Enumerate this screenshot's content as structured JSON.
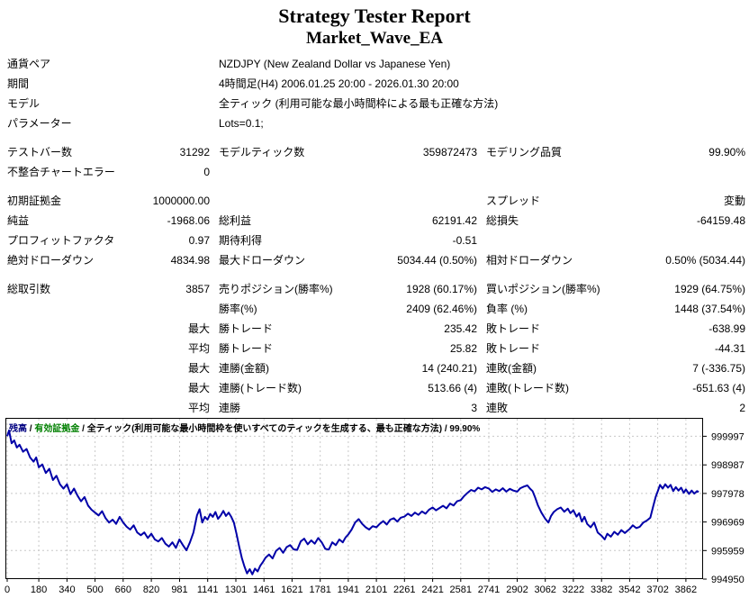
{
  "header": {
    "title": "Strategy Tester Report",
    "subtitle": "Market_Wave_EA"
  },
  "report": {
    "rows": [
      {
        "cells": [
          "通貨ペア",
          "",
          "NZDJPY (New Zealand Dollar vs Japanese Yen)",
          "",
          "",
          ""
        ]
      },
      {
        "cells": [
          "期間",
          "",
          "4時間足(H4) 2006.01.25 20:00 - 2026.01.30 20:00",
          "",
          "",
          ""
        ]
      },
      {
        "cells": [
          "モデル",
          "",
          "全ティック (利用可能な最小時間枠による最も正確な方法)",
          "",
          "",
          ""
        ]
      },
      {
        "cells": [
          "パラメーター",
          "",
          "Lots=0.1;",
          "",
          "",
          ""
        ]
      },
      {
        "gap_before": true,
        "cells": [
          "テストバー数",
          "31292",
          "モデルティック数",
          "359872473",
          "モデリング品質",
          "99.90%"
        ]
      },
      {
        "cells": [
          "不整合チャートエラー",
          "0",
          "",
          "",
          "",
          ""
        ]
      },
      {
        "gap_before": true,
        "cells": [
          "初期証拠金",
          "1000000.00",
          "",
          "",
          "スプレッド",
          "変動"
        ]
      },
      {
        "cells": [
          "純益",
          "-1968.06",
          "総利益",
          "62191.42",
          "総損失",
          "-64159.48"
        ]
      },
      {
        "cells": [
          "プロフィットファクタ",
          "0.97",
          "期待利得",
          "-0.51",
          "",
          ""
        ]
      },
      {
        "cells": [
          "絶対ドローダウン",
          "4834.98",
          "最大ドローダウン",
          "5034.44 (0.50%)",
          "相対ドローダウン",
          "0.50% (5034.44)"
        ]
      },
      {
        "gap_before": true,
        "cells": [
          "総取引数",
          "3857",
          "売りポジション(勝率%)",
          "1928 (60.17%)",
          "買いポジション(勝率%)",
          "1929 (64.75%)"
        ]
      },
      {
        "cells": [
          "",
          "",
          "勝率(%)",
          "2409 (62.46%)",
          "負率 (%)",
          "1448 (37.54%)"
        ]
      },
      {
        "cells": [
          "",
          "最大",
          "勝トレード",
          "235.42",
          "敗トレード",
          "-638.99"
        ]
      },
      {
        "cells": [
          "",
          "平均",
          "勝トレード",
          "25.82",
          "敗トレード",
          "-44.31"
        ]
      },
      {
        "cells": [
          "",
          "最大",
          "連勝(金額)",
          "14 (240.21)",
          "連敗(金額)",
          "7 (-336.75)"
        ]
      },
      {
        "cells": [
          "",
          "最大",
          "連勝(トレード数)",
          "513.66 (4)",
          "連敗(トレード数)",
          "-651.63 (4)"
        ]
      },
      {
        "cells": [
          "",
          "平均",
          "連勝",
          "3",
          "連敗",
          "2"
        ]
      }
    ]
  },
  "chart_data": {
    "type": "line",
    "legend_parts": [
      {
        "text": "残高",
        "color": "#000080"
      },
      {
        "text": "有効証拠金",
        "color": "#008000"
      },
      {
        "text": "全ティック(利用可能な最小時間枠を使いすべてのティックを生成する、最も正確な方法)",
        "color": "#000000"
      },
      {
        "text": "99.90%",
        "color": "#000000"
      }
    ],
    "legend_separator": " / ",
    "grid": true,
    "grid_color": "#c8c8c8",
    "background": "#ffffff",
    "border_color": "#000000",
    "x_ticks": [
      0,
      180,
      340,
      500,
      660,
      820,
      981,
      1141,
      1301,
      1461,
      1621,
      1781,
      1941,
      2101,
      2261,
      2421,
      2581,
      2741,
      2902,
      3062,
      3222,
      3382,
      3542,
      3702,
      3862
    ],
    "y_ticks": [
      999997,
      998987,
      997978,
      996969,
      995959,
      994950
    ],
    "xlim": [
      0,
      3950
    ],
    "ylim": [
      994950,
      1000647
    ],
    "xlabel": "",
    "ylabel": "",
    "series": [
      {
        "name": "残高",
        "color": "#0000a8",
        "points": [
          [
            0,
            1000000
          ],
          [
            10,
            1000200
          ],
          [
            25,
            999750
          ],
          [
            40,
            999850
          ],
          [
            55,
            999600
          ],
          [
            70,
            999700
          ],
          [
            90,
            999450
          ],
          [
            110,
            999550
          ],
          [
            130,
            999250
          ],
          [
            150,
            999100
          ],
          [
            165,
            999250
          ],
          [
            180,
            998900
          ],
          [
            200,
            999000
          ],
          [
            220,
            998700
          ],
          [
            240,
            998850
          ],
          [
            260,
            998450
          ],
          [
            280,
            998600
          ],
          [
            300,
            998300
          ],
          [
            320,
            998150
          ],
          [
            340,
            998300
          ],
          [
            360,
            997950
          ],
          [
            380,
            998150
          ],
          [
            400,
            997900
          ],
          [
            420,
            997700
          ],
          [
            440,
            997850
          ],
          [
            460,
            997550
          ],
          [
            480,
            997400
          ],
          [
            500,
            997300
          ],
          [
            520,
            997200
          ],
          [
            540,
            997350
          ],
          [
            560,
            997100
          ],
          [
            580,
            996950
          ],
          [
            600,
            997050
          ],
          [
            620,
            996900
          ],
          [
            640,
            997150
          ],
          [
            660,
            996950
          ],
          [
            680,
            996800
          ],
          [
            700,
            996700
          ],
          [
            720,
            996850
          ],
          [
            740,
            996600
          ],
          [
            760,
            996500
          ],
          [
            780,
            996600
          ],
          [
            800,
            996400
          ],
          [
            820,
            996550
          ],
          [
            840,
            996350
          ],
          [
            860,
            996280
          ],
          [
            880,
            996400
          ],
          [
            900,
            996200
          ],
          [
            920,
            996100
          ],
          [
            940,
            996250
          ],
          [
            960,
            996050
          ],
          [
            980,
            996350
          ],
          [
            1000,
            996150
          ],
          [
            1020,
            995970
          ],
          [
            1040,
            996250
          ],
          [
            1060,
            996600
          ],
          [
            1080,
            997200
          ],
          [
            1095,
            997420
          ],
          [
            1110,
            996950
          ],
          [
            1125,
            997150
          ],
          [
            1140,
            997050
          ],
          [
            1155,
            997250
          ],
          [
            1170,
            997150
          ],
          [
            1185,
            997320
          ],
          [
            1200,
            997080
          ],
          [
            1215,
            997200
          ],
          [
            1230,
            997360
          ],
          [
            1245,
            997180
          ],
          [
            1260,
            997300
          ],
          [
            1275,
            997150
          ],
          [
            1290,
            996950
          ],
          [
            1305,
            996550
          ],
          [
            1320,
            996100
          ],
          [
            1335,
            995700
          ],
          [
            1350,
            995400
          ],
          [
            1365,
            995150
          ],
          [
            1380,
            995300
          ],
          [
            1395,
            995120
          ],
          [
            1410,
            995320
          ],
          [
            1425,
            995220
          ],
          [
            1440,
            995420
          ],
          [
            1455,
            995550
          ],
          [
            1470,
            995700
          ],
          [
            1490,
            995820
          ],
          [
            1510,
            995680
          ],
          [
            1530,
            995950
          ],
          [
            1550,
            996050
          ],
          [
            1570,
            995880
          ],
          [
            1590,
            996080
          ],
          [
            1610,
            996150
          ],
          [
            1630,
            996000
          ],
          [
            1650,
            995980
          ],
          [
            1670,
            996280
          ],
          [
            1690,
            996380
          ],
          [
            1710,
            996180
          ],
          [
            1730,
            996320
          ],
          [
            1750,
            996200
          ],
          [
            1770,
            996400
          ],
          [
            1790,
            996250
          ],
          [
            1810,
            996020
          ],
          [
            1830,
            995990
          ],
          [
            1850,
            996250
          ],
          [
            1870,
            996150
          ],
          [
            1890,
            996350
          ],
          [
            1910,
            996250
          ],
          [
            1925,
            996420
          ],
          [
            1941,
            996530
          ],
          [
            1960,
            996700
          ],
          [
            1980,
            996950
          ],
          [
            2000,
            997070
          ],
          [
            2020,
            996900
          ],
          [
            2040,
            996780
          ],
          [
            2060,
            996700
          ],
          [
            2080,
            996820
          ],
          [
            2101,
            996780
          ],
          [
            2120,
            996900
          ],
          [
            2140,
            997000
          ],
          [
            2160,
            996880
          ],
          [
            2180,
            997050
          ],
          [
            2200,
            997100
          ],
          [
            2220,
            996980
          ],
          [
            2240,
            997120
          ],
          [
            2261,
            997160
          ],
          [
            2280,
            997260
          ],
          [
            2300,
            997180
          ],
          [
            2320,
            997300
          ],
          [
            2340,
            997220
          ],
          [
            2360,
            997340
          ],
          [
            2380,
            997260
          ],
          [
            2400,
            997400
          ],
          [
            2421,
            997480
          ],
          [
            2440,
            997380
          ],
          [
            2460,
            997460
          ],
          [
            2480,
            997540
          ],
          [
            2500,
            997450
          ],
          [
            2520,
            997620
          ],
          [
            2540,
            997550
          ],
          [
            2560,
            997700
          ],
          [
            2581,
            997740
          ],
          [
            2600,
            997880
          ],
          [
            2620,
            998000
          ],
          [
            2640,
            998100
          ],
          [
            2660,
            998050
          ],
          [
            2680,
            998180
          ],
          [
            2700,
            998120
          ],
          [
            2720,
            998200
          ],
          [
            2741,
            998150
          ],
          [
            2760,
            998030
          ],
          [
            2780,
            998120
          ],
          [
            2800,
            998060
          ],
          [
            2820,
            998160
          ],
          [
            2840,
            998040
          ],
          [
            2860,
            998140
          ],
          [
            2880,
            998080
          ],
          [
            2902,
            998040
          ],
          [
            2920,
            998160
          ],
          [
            2940,
            998220
          ],
          [
            2960,
            998260
          ],
          [
            2975,
            998150
          ],
          [
            2990,
            998060
          ],
          [
            3005,
            997820
          ],
          [
            3020,
            997560
          ],
          [
            3040,
            997300
          ],
          [
            3062,
            997080
          ],
          [
            3080,
            996950
          ],
          [
            3095,
            997180
          ],
          [
            3110,
            997320
          ],
          [
            3130,
            997420
          ],
          [
            3150,
            997480
          ],
          [
            3170,
            997330
          ],
          [
            3190,
            997440
          ],
          [
            3205,
            997280
          ],
          [
            3222,
            997380
          ],
          [
            3240,
            997160
          ],
          [
            3255,
            997280
          ],
          [
            3270,
            996980
          ],
          [
            3285,
            997150
          ],
          [
            3300,
            996900
          ],
          [
            3320,
            996780
          ],
          [
            3340,
            996950
          ],
          [
            3360,
            996600
          ],
          [
            3382,
            996480
          ],
          [
            3400,
            996350
          ],
          [
            3415,
            996550
          ],
          [
            3435,
            996450
          ],
          [
            3455,
            996620
          ],
          [
            3475,
            996520
          ],
          [
            3495,
            996680
          ],
          [
            3515,
            996580
          ],
          [
            3542,
            996720
          ],
          [
            3560,
            996850
          ],
          [
            3580,
            996750
          ],
          [
            3600,
            996800
          ],
          [
            3620,
            996950
          ],
          [
            3640,
            997020
          ],
          [
            3660,
            997120
          ],
          [
            3675,
            997500
          ],
          [
            3690,
            997850
          ],
          [
            3702,
            998050
          ],
          [
            3715,
            998280
          ],
          [
            3730,
            998150
          ],
          [
            3745,
            998300
          ],
          [
            3760,
            998180
          ],
          [
            3775,
            998280
          ],
          [
            3790,
            998060
          ],
          [
            3805,
            998200
          ],
          [
            3820,
            998080
          ],
          [
            3835,
            998180
          ],
          [
            3850,
            998000
          ],
          [
            3862,
            998120
          ],
          [
            3880,
            997960
          ],
          [
            3895,
            998080
          ],
          [
            3910,
            997970
          ],
          [
            3925,
            998060
          ],
          [
            3935,
            998032
          ]
        ]
      }
    ]
  }
}
